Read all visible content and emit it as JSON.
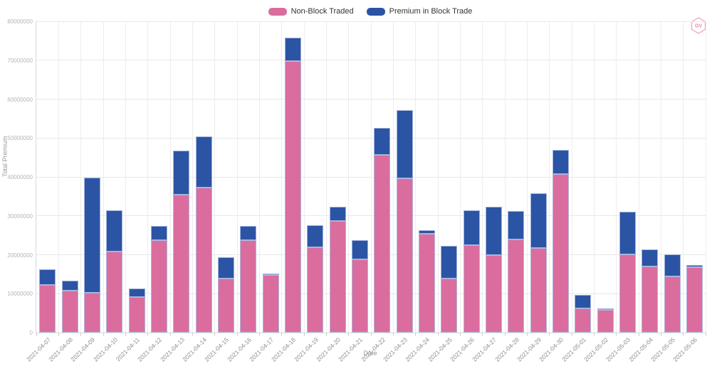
{
  "legend": {
    "items": [
      {
        "label": "Non-Block Traded",
        "color": "#da6d9e"
      },
      {
        "label": "Premium in Block Trade",
        "color": "#2b54a4"
      }
    ]
  },
  "badge": {
    "text": "GV",
    "color": "#ef7fae"
  },
  "chart_data": {
    "type": "bar",
    "stacked": true,
    "title": "",
    "xlabel": "Date",
    "ylabel": "Total Premium",
    "ylim": [
      0,
      80000000
    ],
    "ytick_interval": 10000000,
    "grid": true,
    "legend_position": "top-center",
    "categories": [
      "2021-04-07",
      "2021-04-08",
      "2021-04-09",
      "2021-04-10",
      "2021-04-11",
      "2021-04-12",
      "2021-04-13",
      "2021-04-14",
      "2021-04-15",
      "2021-04-16",
      "2021-04-17",
      "2021-04-18",
      "2021-04-19",
      "2021-04-20",
      "2021-04-21",
      "2021-04-22",
      "2021-04-23",
      "2021-04-24",
      "2021-04-25",
      "2021-04-26",
      "2021-04-27",
      "2021-04-28",
      "2021-04-29",
      "2021-04-30",
      "2021-05-01",
      "2021-05-02",
      "2021-05-03",
      "2021-05-04",
      "2021-05-05",
      "2021-05-06"
    ],
    "series": [
      {
        "name": "Non-Block Traded",
        "color": "#da6d9e",
        "values": [
          12300000,
          10800000,
          10200000,
          20800000,
          9100000,
          23800000,
          35500000,
          37200000,
          13800000,
          23700000,
          14800000,
          69700000,
          22000000,
          28700000,
          18900000,
          45600000,
          39700000,
          25300000,
          13800000,
          22500000,
          20000000,
          24000000,
          21800000,
          40800000,
          6300000,
          5800000,
          20100000,
          17000000,
          14500000,
          16800000
        ]
      },
      {
        "name": "Premium in Block Trade",
        "color": "#2b54a4",
        "values": [
          4000000,
          2600000,
          29600000,
          10600000,
          2200000,
          3600000,
          11300000,
          13200000,
          5600000,
          3700000,
          200000,
          6100000,
          5600000,
          3600000,
          4800000,
          7000000,
          17500000,
          1000000,
          8500000,
          8900000,
          12300000,
          7200000,
          14000000,
          6100000,
          3400000,
          500000,
          11000000,
          4400000,
          5600000,
          600000
        ]
      }
    ]
  }
}
